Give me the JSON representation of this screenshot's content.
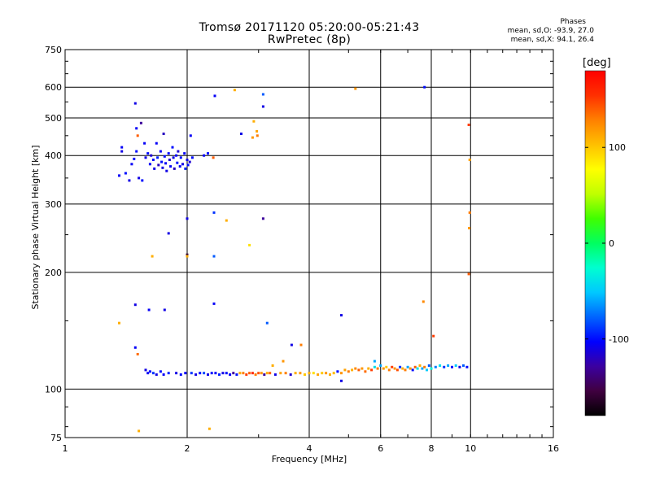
{
  "header": {
    "title_line1": "Tromsø 20171120 05:20:00-05:21:43",
    "title_line2": "RwPretec (8p)",
    "stats_title": "Phases",
    "stats_line1": "mean, sd,O: -93.9, 27.0",
    "stats_line2": "mean, sd,X:  94.1, 26.4"
  },
  "colorbar": {
    "label": "[deg]",
    "ticks": [
      "100",
      "0",
      "-100"
    ],
    "colors": [
      "#000000",
      "#400040",
      "#3b00a0",
      "#0000ff",
      "#0064ff",
      "#00c8ff",
      "#00ffd0",
      "#00ff60",
      "#40ff00",
      "#c0ff00",
      "#ffff00",
      "#ffc000",
      "#ff8000",
      "#ff3000",
      "#ff0000"
    ]
  },
  "chart_data": {
    "type": "scatter",
    "title": "Tromsø 20171120 05:20:00-05:21:43",
    "subtitle": "RwPretec (8p)",
    "xlabel": "Frequency [MHz]",
    "ylabel": "Stationary phase Virtual Height [km]",
    "x_scale": "log",
    "y_scale": "log",
    "xlim": [
      1,
      16
    ],
    "ylim": [
      75,
      750
    ],
    "x_ticks": [
      "1",
      "2",
      "4",
      "6",
      "8",
      "10",
      "16"
    ],
    "x_tick_values": [
      1,
      2,
      4,
      6,
      8,
      10,
      16
    ],
    "y_ticks": [
      "75",
      "100",
      "200",
      "300",
      "400",
      "500",
      "600",
      "750"
    ],
    "y_tick_values": [
      75,
      100,
      200,
      300,
      400,
      500,
      600,
      750
    ],
    "grid": true,
    "color_scale": "phase (deg)",
    "series": [
      {
        "values": [
          {
            "x": 1.36,
            "y": 355,
            "c": -105
          },
          {
            "x": 1.38,
            "y": 410,
            "c": -110
          },
          {
            "x": 1.38,
            "y": 420,
            "c": -105
          },
          {
            "x": 1.41,
            "y": 360,
            "c": -100
          },
          {
            "x": 1.44,
            "y": 345,
            "c": -110
          },
          {
            "x": 1.46,
            "y": 380,
            "c": -105
          },
          {
            "x": 1.48,
            "y": 392,
            "c": -100
          },
          {
            "x": 1.49,
            "y": 545,
            "c": -110
          },
          {
            "x": 1.5,
            "y": 470,
            "c": -105
          },
          {
            "x": 1.51,
            "y": 450,
            "c": 140
          },
          {
            "x": 1.5,
            "y": 410,
            "c": -100
          },
          {
            "x": 1.52,
            "y": 350,
            "c": -110
          },
          {
            "x": 1.54,
            "y": 485,
            "c": -130
          },
          {
            "x": 1.55,
            "y": 345,
            "c": -100
          },
          {
            "x": 1.57,
            "y": 430,
            "c": -105
          },
          {
            "x": 1.58,
            "y": 395,
            "c": -110
          },
          {
            "x": 1.6,
            "y": 405,
            "c": -100
          },
          {
            "x": 1.62,
            "y": 380,
            "c": -105
          },
          {
            "x": 1.63,
            "y": 400,
            "c": -115
          },
          {
            "x": 1.65,
            "y": 390,
            "c": -100
          },
          {
            "x": 1.66,
            "y": 370,
            "c": -110
          },
          {
            "x": 1.68,
            "y": 430,
            "c": -105
          },
          {
            "x": 1.69,
            "y": 395,
            "c": -95
          },
          {
            "x": 1.7,
            "y": 378,
            "c": -120
          },
          {
            "x": 1.72,
            "y": 410,
            "c": -105
          },
          {
            "x": 1.73,
            "y": 385,
            "c": -100
          },
          {
            "x": 1.74,
            "y": 372,
            "c": -110
          },
          {
            "x": 1.75,
            "y": 455,
            "c": -120
          },
          {
            "x": 1.76,
            "y": 398,
            "c": -100
          },
          {
            "x": 1.77,
            "y": 382,
            "c": -105
          },
          {
            "x": 1.78,
            "y": 365,
            "c": -110
          },
          {
            "x": 1.8,
            "y": 405,
            "c": -100
          },
          {
            "x": 1.81,
            "y": 390,
            "c": -115
          },
          {
            "x": 1.82,
            "y": 375,
            "c": -105
          },
          {
            "x": 1.84,
            "y": 420,
            "c": -100
          },
          {
            "x": 1.85,
            "y": 395,
            "c": -110
          },
          {
            "x": 1.86,
            "y": 370,
            "c": -120
          },
          {
            "x": 1.88,
            "y": 400,
            "c": -105
          },
          {
            "x": 1.89,
            "y": 383,
            "c": -100
          },
          {
            "x": 1.9,
            "y": 410,
            "c": -115
          },
          {
            "x": 1.92,
            "y": 375,
            "c": -105
          },
          {
            "x": 1.93,
            "y": 395,
            "c": -100
          },
          {
            "x": 1.95,
            "y": 380,
            "c": -110
          },
          {
            "x": 1.97,
            "y": 405,
            "c": -105
          },
          {
            "x": 1.98,
            "y": 370,
            "c": -95
          },
          {
            "x": 2.0,
            "y": 390,
            "c": -110
          },
          {
            "x": 2.01,
            "y": 378,
            "c": -100
          },
          {
            "x": 2.03,
            "y": 385,
            "c": -115
          },
          {
            "x": 2.04,
            "y": 450,
            "c": -105
          },
          {
            "x": 2.06,
            "y": 395,
            "c": -100
          },
          {
            "x": 2.2,
            "y": 400,
            "c": -105
          },
          {
            "x": 2.25,
            "y": 405,
            "c": -100
          },
          {
            "x": 2.32,
            "y": 395,
            "c": 140
          },
          {
            "x": 2.34,
            "y": 570,
            "c": -105
          },
          {
            "x": 2.62,
            "y": 590,
            "c": 110
          },
          {
            "x": 2.72,
            "y": 455,
            "c": -110
          },
          {
            "x": 2.9,
            "y": 445,
            "c": 120
          },
          {
            "x": 2.92,
            "y": 490,
            "c": 110
          },
          {
            "x": 2.97,
            "y": 462,
            "c": 115
          },
          {
            "x": 2.98,
            "y": 450,
            "c": 130
          },
          {
            "x": 3.08,
            "y": 575,
            "c": -80
          },
          {
            "x": 3.08,
            "y": 535,
            "c": -110
          },
          {
            "x": 5.2,
            "y": 595,
            "c": 120
          },
          {
            "x": 7.7,
            "y": 600,
            "c": -100
          },
          {
            "x": 9.9,
            "y": 480,
            "c": 150
          },
          {
            "x": 9.95,
            "y": 390,
            "c": 115
          },
          {
            "x": 9.95,
            "y": 285,
            "c": 130
          },
          {
            "x": 9.92,
            "y": 260,
            "c": 120
          },
          {
            "x": 9.9,
            "y": 198,
            "c": 140
          },
          {
            "x": 2.0,
            "y": 275,
            "c": -110
          },
          {
            "x": 2.0,
            "y": 222,
            "c": -160
          },
          {
            "x": 2.0,
            "y": 220,
            "c": 110
          },
          {
            "x": 1.8,
            "y": 252,
            "c": -110
          },
          {
            "x": 1.64,
            "y": 220,
            "c": 110
          },
          {
            "x": 2.33,
            "y": 285,
            "c": -90
          },
          {
            "x": 2.33,
            "y": 220,
            "c": -80
          },
          {
            "x": 2.5,
            "y": 272,
            "c": 110
          },
          {
            "x": 2.85,
            "y": 235,
            "c": 90
          },
          {
            "x": 3.08,
            "y": 275,
            "c": -130
          },
          {
            "x": 1.49,
            "y": 165,
            "c": -110
          },
          {
            "x": 1.49,
            "y": 128,
            "c": -105
          },
          {
            "x": 1.51,
            "y": 123,
            "c": 135
          },
          {
            "x": 1.36,
            "y": 148,
            "c": 110
          },
          {
            "x": 1.61,
            "y": 160,
            "c": -105
          },
          {
            "x": 1.76,
            "y": 160,
            "c": -110
          },
          {
            "x": 2.33,
            "y": 166,
            "c": -105
          },
          {
            "x": 3.15,
            "y": 148,
            "c": -80
          },
          {
            "x": 3.62,
            "y": 130,
            "c": -110
          },
          {
            "x": 3.82,
            "y": 130,
            "c": 130
          },
          {
            "x": 4.8,
            "y": 155,
            "c": -110
          },
          {
            "x": 7.65,
            "y": 168,
            "c": 125
          },
          {
            "x": 8.1,
            "y": 137,
            "c": 150
          },
          {
            "x": 1.52,
            "y": 78,
            "c": 110
          },
          {
            "x": 2.27,
            "y": 79,
            "c": 110
          }
        ]
      },
      {
        "values": [
          {
            "x": 1.58,
            "y": 112,
            "c": -110
          },
          {
            "x": 1.6,
            "y": 110,
            "c": -105
          },
          {
            "x": 1.62,
            "y": 111,
            "c": -100
          },
          {
            "x": 1.65,
            "y": 110,
            "c": -90
          },
          {
            "x": 1.68,
            "y": 109,
            "c": -110
          },
          {
            "x": 1.72,
            "y": 111,
            "c": -100
          },
          {
            "x": 1.75,
            "y": 109,
            "c": -105
          },
          {
            "x": 1.8,
            "y": 110,
            "c": -95
          },
          {
            "x": 1.88,
            "y": 110,
            "c": -110
          },
          {
            "x": 1.93,
            "y": 109,
            "c": -100
          },
          {
            "x": 1.98,
            "y": 110,
            "c": -105
          },
          {
            "x": 2.05,
            "y": 110,
            "c": -90
          },
          {
            "x": 2.1,
            "y": 109,
            "c": -110
          },
          {
            "x": 2.15,
            "y": 110,
            "c": -100
          },
          {
            "x": 2.2,
            "y": 110,
            "c": -85
          },
          {
            "x": 2.25,
            "y": 109,
            "c": -110
          },
          {
            "x": 2.3,
            "y": 110,
            "c": -100
          },
          {
            "x": 2.35,
            "y": 110,
            "c": -105
          },
          {
            "x": 2.4,
            "y": 109,
            "c": -95
          },
          {
            "x": 2.45,
            "y": 110,
            "c": -110
          },
          {
            "x": 2.5,
            "y": 110,
            "c": -100
          },
          {
            "x": 2.55,
            "y": 109,
            "c": -105
          },
          {
            "x": 2.6,
            "y": 110,
            "c": -130
          },
          {
            "x": 2.65,
            "y": 109,
            "c": -100
          },
          {
            "x": 2.7,
            "y": 110,
            "c": 110
          },
          {
            "x": 2.75,
            "y": 110,
            "c": 130
          },
          {
            "x": 2.8,
            "y": 109,
            "c": 150
          },
          {
            "x": 2.85,
            "y": 110,
            "c": 140
          },
          {
            "x": 2.9,
            "y": 110,
            "c": 160
          },
          {
            "x": 2.95,
            "y": 109,
            "c": 130
          },
          {
            "x": 3.0,
            "y": 110,
            "c": 145
          },
          {
            "x": 3.05,
            "y": 110,
            "c": 120
          },
          {
            "x": 3.1,
            "y": 109,
            "c": -130
          },
          {
            "x": 3.15,
            "y": 110,
            "c": 110
          },
          {
            "x": 3.2,
            "y": 110,
            "c": 140
          },
          {
            "x": 3.3,
            "y": 109,
            "c": -110
          },
          {
            "x": 3.4,
            "y": 110,
            "c": 115
          },
          {
            "x": 3.5,
            "y": 110,
            "c": 130
          },
          {
            "x": 3.6,
            "y": 109,
            "c": -115
          },
          {
            "x": 3.7,
            "y": 110,
            "c": 110
          },
          {
            "x": 3.8,
            "y": 110,
            "c": 120
          },
          {
            "x": 3.9,
            "y": 109,
            "c": 100
          },
          {
            "x": 4.0,
            "y": 110,
            "c": 110
          },
          {
            "x": 4.1,
            "y": 110,
            "c": 90
          },
          {
            "x": 4.2,
            "y": 109,
            "c": 115
          },
          {
            "x": 4.3,
            "y": 110,
            "c": 100
          },
          {
            "x": 4.4,
            "y": 110,
            "c": 120
          },
          {
            "x": 4.5,
            "y": 109,
            "c": 110
          },
          {
            "x": 4.6,
            "y": 110,
            "c": 105
          },
          {
            "x": 4.7,
            "y": 111,
            "c": -100
          },
          {
            "x": 4.8,
            "y": 110,
            "c": 120
          },
          {
            "x": 4.9,
            "y": 112,
            "c": 115
          },
          {
            "x": 5.0,
            "y": 111,
            "c": 130
          },
          {
            "x": 5.1,
            "y": 112,
            "c": 110
          },
          {
            "x": 5.2,
            "y": 113,
            "c": 125
          },
          {
            "x": 5.3,
            "y": 112,
            "c": 140
          },
          {
            "x": 5.4,
            "y": 113,
            "c": 120
          },
          {
            "x": 5.5,
            "y": 111,
            "c": 135
          },
          {
            "x": 5.6,
            "y": 113,
            "c": 110
          },
          {
            "x": 5.7,
            "y": 112,
            "c": 150
          },
          {
            "x": 5.8,
            "y": 114,
            "c": -40
          },
          {
            "x": 5.9,
            "y": 113,
            "c": 130
          },
          {
            "x": 6.0,
            "y": 115,
            "c": -60
          },
          {
            "x": 6.1,
            "y": 113,
            "c": 120
          },
          {
            "x": 6.2,
            "y": 114,
            "c": 100
          },
          {
            "x": 6.3,
            "y": 112,
            "c": 130
          },
          {
            "x": 6.4,
            "y": 114,
            "c": 150
          },
          {
            "x": 6.5,
            "y": 113,
            "c": 120
          },
          {
            "x": 6.6,
            "y": 112,
            "c": 145
          },
          {
            "x": 6.7,
            "y": 114,
            "c": -90
          },
          {
            "x": 6.8,
            "y": 113,
            "c": 110
          },
          {
            "x": 6.9,
            "y": 112,
            "c": 130
          },
          {
            "x": 7.0,
            "y": 114,
            "c": -60
          },
          {
            "x": 7.1,
            "y": 113,
            "c": 120
          },
          {
            "x": 7.2,
            "y": 112,
            "c": -100
          },
          {
            "x": 7.3,
            "y": 114,
            "c": 140
          },
          {
            "x": 7.4,
            "y": 113,
            "c": -40
          },
          {
            "x": 7.5,
            "y": 115,
            "c": 110
          },
          {
            "x": 7.6,
            "y": 113,
            "c": -60
          },
          {
            "x": 7.7,
            "y": 114,
            "c": 130
          },
          {
            "x": 7.8,
            "y": 112,
            "c": -50
          },
          {
            "x": 7.9,
            "y": 115,
            "c": -80
          },
          {
            "x": 8.0,
            "y": 113,
            "c": -30
          },
          {
            "x": 8.2,
            "y": 114,
            "c": -70
          },
          {
            "x": 8.4,
            "y": 115,
            "c": -40
          },
          {
            "x": 8.6,
            "y": 114,
            "c": -90
          },
          {
            "x": 8.8,
            "y": 115,
            "c": -60
          },
          {
            "x": 9.0,
            "y": 114,
            "c": -100
          },
          {
            "x": 9.2,
            "y": 115,
            "c": -50
          },
          {
            "x": 9.4,
            "y": 114,
            "c": -110
          },
          {
            "x": 9.6,
            "y": 115,
            "c": -80
          },
          {
            "x": 9.8,
            "y": 114,
            "c": -100
          },
          {
            "x": 4.8,
            "y": 105,
            "c": -110
          },
          {
            "x": 3.45,
            "y": 118,
            "c": 120
          },
          {
            "x": 3.25,
            "y": 115,
            "c": 110
          },
          {
            "x": 5.8,
            "y": 118,
            "c": -60
          }
        ]
      }
    ]
  }
}
